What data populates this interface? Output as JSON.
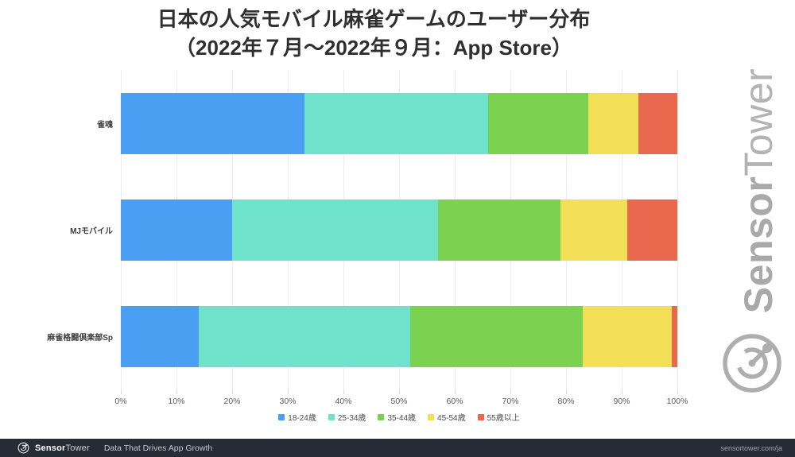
{
  "title": {
    "line1": "日本の人気モバイル麻雀ゲームのユーザー分布",
    "line2": "（2022年７月～2022年９月：App Store）"
  },
  "chart_data": {
    "type": "bar",
    "orientation": "horizontal",
    "stacked": true,
    "title": "日本の人気モバイル麻雀ゲームのユーザー分布（2022年７月～2022年９月：App Store）",
    "categories": [
      "雀魂",
      "MJモバイル",
      "麻雀格闘倶楽部Sp"
    ],
    "series": [
      {
        "name": "18-24歳",
        "color": "#4a9ff3",
        "values": [
          33,
          20,
          14
        ]
      },
      {
        "name": "25-34歳",
        "color": "#6ee2ca",
        "values": [
          33,
          37,
          38
        ]
      },
      {
        "name": "35-44歳",
        "color": "#7bd250",
        "values": [
          18,
          22,
          31
        ]
      },
      {
        "name": "45-54歳",
        "color": "#f2df55",
        "values": [
          9,
          12,
          16
        ]
      },
      {
        "name": "55歳以上",
        "color": "#e9694f",
        "values": [
          7,
          9,
          1
        ]
      }
    ],
    "x_ticks": [
      "0%",
      "10%",
      "20%",
      "30%",
      "40%",
      "50%",
      "60%",
      "70%",
      "80%",
      "90%",
      "100%"
    ],
    "xlim": [
      0,
      100
    ],
    "unit": "%",
    "grid": true,
    "legend_position": "bottom"
  },
  "watermark": {
    "brand_bold": "Sensor",
    "brand_light": "Tower"
  },
  "footer": {
    "brand_bold": "Sensor",
    "brand_light": "Tower",
    "tagline": "Data That Drives App Growth",
    "url": "sensortower.com/ja",
    "bg_color": "#262c35"
  }
}
